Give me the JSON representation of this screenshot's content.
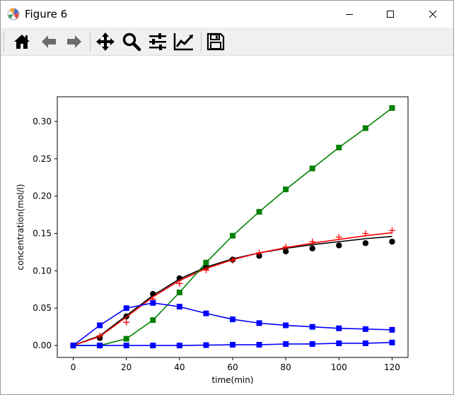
{
  "window": {
    "title": "Figure 6",
    "controls": [
      "minimize",
      "maximize",
      "close"
    ]
  },
  "toolbar": {
    "buttons": [
      {
        "name": "home",
        "icon": "home-icon"
      },
      {
        "name": "back",
        "icon": "arrow-left-icon"
      },
      {
        "name": "forward",
        "icon": "arrow-right-icon"
      },
      {
        "name": "pan",
        "icon": "move-icon"
      },
      {
        "name": "zoom",
        "icon": "magnifier-icon"
      },
      {
        "name": "configure-subplots",
        "icon": "sliders-icon"
      },
      {
        "name": "edit-axis",
        "icon": "line-chart-icon"
      },
      {
        "name": "save",
        "icon": "floppy-disk-icon"
      }
    ]
  },
  "chart_data": {
    "type": "line",
    "title": "",
    "xlabel": "time(min)",
    "ylabel": "concentration(mol/l)",
    "xlim": [
      -6,
      126
    ],
    "ylim": [
      -0.016,
      0.333
    ],
    "xticks": [
      0,
      20,
      40,
      60,
      80,
      100,
      120
    ],
    "xtick_labels": [
      "0",
      "20",
      "40",
      "60",
      "80",
      "100",
      "120"
    ],
    "yticks": [
      0.0,
      0.05,
      0.1,
      0.15,
      0.2,
      0.25,
      0.3
    ],
    "ytick_labels": [
      "0.00",
      "0.05",
      "0.10",
      "0.15",
      "0.20",
      "0.25",
      "0.30"
    ],
    "grid": false,
    "legend": "none",
    "series": [
      {
        "color": "#000000",
        "kind": "line",
        "x": [
          0,
          10,
          20,
          30,
          40,
          50,
          60,
          70,
          80,
          90,
          100,
          110,
          120
        ],
        "y": [
          0,
          0.013,
          0.04,
          0.067,
          0.089,
          0.105,
          0.116,
          0.124,
          0.13,
          0.135,
          0.139,
          0.143,
          0.146
        ]
      },
      {
        "color": "#000000",
        "kind": "marker",
        "marker": "circle",
        "x": [
          0,
          10,
          20,
          30,
          40,
          50,
          60,
          70,
          80,
          90,
          100,
          110,
          120
        ],
        "y": [
          0,
          0.01,
          0.039,
          0.069,
          0.09,
          0.105,
          0.115,
          0.12,
          0.126,
          0.13,
          0.134,
          0.137,
          0.139
        ]
      },
      {
        "color": "#ff0000",
        "kind": "line",
        "x": [
          0,
          10,
          20,
          30,
          40,
          50,
          60,
          70,
          80,
          90,
          100,
          110,
          120
        ],
        "y": [
          0,
          0.012,
          0.038,
          0.065,
          0.087,
          0.103,
          0.115,
          0.124,
          0.131,
          0.137,
          0.142,
          0.147,
          0.151
        ]
      },
      {
        "color": "#ff0000",
        "kind": "marker",
        "marker": "plus",
        "x": [
          0,
          10,
          20,
          30,
          40,
          50,
          60,
          70,
          80,
          90,
          100,
          110,
          120
        ],
        "y": [
          0,
          0.013,
          0.031,
          0.062,
          0.083,
          0.101,
          0.114,
          0.124,
          0.132,
          0.139,
          0.145,
          0.15,
          0.154
        ]
      },
      {
        "color": "#008000",
        "kind": "line+marker",
        "marker": "square",
        "x": [
          0,
          10,
          20,
          30,
          40,
          50,
          60,
          70,
          80,
          90,
          100,
          110,
          120
        ],
        "y": [
          0,
          0.0,
          0.009,
          0.034,
          0.071,
          0.111,
          0.147,
          0.179,
          0.209,
          0.237,
          0.265,
          0.291,
          0.318
        ]
      },
      {
        "color": "#0000ff",
        "kind": "line+marker",
        "marker": "square",
        "x": [
          0,
          10,
          20,
          30,
          40,
          50,
          60,
          70,
          80,
          90,
          100,
          110,
          120
        ],
        "y": [
          0,
          0.027,
          0.05,
          0.057,
          0.052,
          0.043,
          0.035,
          0.03,
          0.027,
          0.025,
          0.023,
          0.022,
          0.021
        ]
      },
      {
        "color": "#0000ff",
        "kind": "line+marker",
        "marker": "square",
        "x": [
          0,
          10,
          20,
          30,
          40,
          50,
          60,
          70,
          80,
          90,
          100,
          110,
          120
        ],
        "y": [
          0,
          0.0,
          0.0,
          0.0,
          0.0,
          0.0005,
          0.001,
          0.001,
          0.002,
          0.002,
          0.003,
          0.003,
          0.004
        ]
      }
    ]
  }
}
